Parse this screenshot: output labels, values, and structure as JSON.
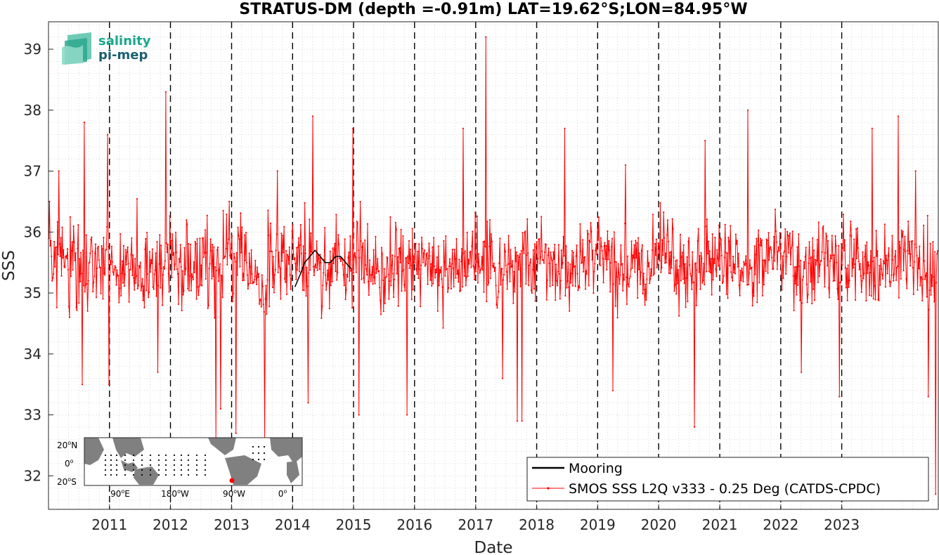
{
  "logo": {
    "line1": "salinity",
    "line2": "pi-mep",
    "color1": "#1aa88c",
    "color2": "#1a5f6e"
  },
  "inset_map": {
    "lat_labels": [
      "20",
      "0",
      "20"
    ],
    "lat_suffixes": [
      "N",
      "",
      "S"
    ],
    "lon_labels": [
      "90",
      "180",
      "90",
      "0"
    ],
    "lon_suffixes": [
      "E",
      "W",
      "W",
      ""
    ],
    "degree_symbol": "o",
    "land_color": "#808080",
    "ocean_color": "#ffffff",
    "marker_color": "#ff0000"
  },
  "chart_data": {
    "type": "line",
    "title": "STRATUS-DM (depth =-0.91m) LAT=19.62°S;LON=84.95°W",
    "xlabel": "Date",
    "ylabel": "SSS",
    "xlim": [
      "2010-01-01",
      "2024-08-01"
    ],
    "ylim": [
      31.45,
      39.45
    ],
    "yticks": [
      32,
      33,
      34,
      35,
      36,
      37,
      38,
      39
    ],
    "xticks": [
      "2011",
      "2012",
      "2013",
      "2014",
      "2015",
      "2016",
      "2017",
      "2018",
      "2019",
      "2020",
      "2021",
      "2022",
      "2023"
    ],
    "year_dividers": [
      "2011-01-01",
      "2012-01-01",
      "2013-01-01",
      "2014-01-01",
      "2015-01-01",
      "2016-01-01",
      "2017-01-01",
      "2018-01-01",
      "2019-01-01",
      "2020-01-01",
      "2021-01-01",
      "2022-01-01",
      "2023-01-01"
    ],
    "grid": "minor-dotted",
    "legend_position": "bottom-right",
    "series": [
      {
        "name": "Mooring",
        "color": "#000000",
        "dates": [
          "2014-01-15",
          "2014-02-15",
          "2014-03-15",
          "2014-04-15",
          "2014-05-15",
          "2014-06-15",
          "2014-07-15",
          "2014-08-15",
          "2014-09-15",
          "2014-10-15",
          "2014-11-15",
          "2014-12-15"
        ],
        "values": [
          35.1,
          35.3,
          35.5,
          35.6,
          35.7,
          35.6,
          35.5,
          35.5,
          35.6,
          35.6,
          35.5,
          35.4
        ]
      },
      {
        "name": "SMOS SSS L2Q v333 - 0.25 Deg (CATDS-CPDC)",
        "color": "#ff0000",
        "sampling": "approx. every 4 days",
        "mean_annual_cycle": [
          {
            "month": 1,
            "mean": 35.55
          },
          {
            "month": 2,
            "mean": 35.6
          },
          {
            "month": 3,
            "mean": 35.55
          },
          {
            "month": 4,
            "mean": 35.45
          },
          {
            "month": 5,
            "mean": 35.4
          },
          {
            "month": 6,
            "mean": 35.35
          },
          {
            "month": 7,
            "mean": 35.35
          },
          {
            "month": 8,
            "mean": 35.4
          },
          {
            "month": 9,
            "mean": 35.45
          },
          {
            "month": 10,
            "mean": 35.5
          },
          {
            "month": 11,
            "mean": 35.5
          },
          {
            "month": 12,
            "mean": 35.55
          }
        ],
        "typical_spread": 0.6,
        "extremes": [
          {
            "date": "2010-01-05",
            "value": 36.5
          },
          {
            "date": "2010-01-20",
            "value": 35.2
          },
          {
            "date": "2010-03-01",
            "value": 37.0
          },
          {
            "date": "2010-05-05",
            "value": 34.6
          },
          {
            "date": "2010-07-20",
            "value": 33.5
          },
          {
            "date": "2010-08-01",
            "value": 37.8
          },
          {
            "date": "2010-12-20",
            "value": 37.6
          },
          {
            "date": "2010-12-28",
            "value": 33.5
          },
          {
            "date": "2011-10-15",
            "value": 33.7
          },
          {
            "date": "2011-12-01",
            "value": 38.3
          },
          {
            "date": "2012-09-25",
            "value": 32.6
          },
          {
            "date": "2012-10-25",
            "value": 33.1
          },
          {
            "date": "2013-01-25",
            "value": 32.7
          },
          {
            "date": "2013-07-15",
            "value": 32.6
          },
          {
            "date": "2013-10-01",
            "value": 37.0
          },
          {
            "date": "2014-04-01",
            "value": 33.2
          },
          {
            "date": "2014-05-01",
            "value": 37.9
          },
          {
            "date": "2014-12-25",
            "value": 37.7
          },
          {
            "date": "2015-02-01",
            "value": 33.0
          },
          {
            "date": "2015-11-15",
            "value": 33.0
          },
          {
            "date": "2016-10-15",
            "value": 37.7
          },
          {
            "date": "2017-03-01",
            "value": 39.2
          },
          {
            "date": "2017-06-10",
            "value": 33.6
          },
          {
            "date": "2017-09-05",
            "value": 32.9
          },
          {
            "date": "2017-10-01",
            "value": 32.9
          },
          {
            "date": "2018-06-15",
            "value": 37.7
          },
          {
            "date": "2019-04-01",
            "value": 33.4
          },
          {
            "date": "2019-06-15",
            "value": 37.1
          },
          {
            "date": "2020-08-01",
            "value": 32.8
          },
          {
            "date": "2020-10-01",
            "value": 37.5
          },
          {
            "date": "2021-06-15",
            "value": 38.0
          },
          {
            "date": "2022-05-01",
            "value": 33.7
          },
          {
            "date": "2022-12-15",
            "value": 33.3
          },
          {
            "date": "2023-07-01",
            "value": 37.7
          },
          {
            "date": "2023-12-01",
            "value": 37.9
          },
          {
            "date": "2024-03-15",
            "value": 37.0
          },
          {
            "date": "2024-06-01",
            "value": 33.3
          },
          {
            "date": "2024-07-15",
            "value": 31.7
          }
        ]
      }
    ],
    "legend": [
      "Mooring",
      "SMOS SSS L2Q v333 - 0.25 Deg (CATDS-CPDC)"
    ]
  }
}
